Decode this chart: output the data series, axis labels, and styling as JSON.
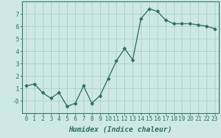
{
  "x": [
    0,
    1,
    2,
    3,
    4,
    5,
    6,
    7,
    8,
    9,
    10,
    11,
    12,
    13,
    14,
    15,
    16,
    17,
    18,
    19,
    20,
    21,
    22,
    23
  ],
  "y": [
    1.2,
    1.35,
    0.65,
    0.2,
    0.65,
    -0.45,
    -0.2,
    1.2,
    -0.2,
    0.4,
    1.8,
    3.2,
    4.2,
    3.3,
    6.6,
    7.4,
    7.2,
    6.5,
    6.2,
    6.2,
    6.2,
    6.1,
    6.0,
    5.8
  ],
  "line_color": "#2e6e65",
  "marker": "D",
  "marker_size": 2.5,
  "bg_color": "#cde8e5",
  "grid_color": "#a8ceca",
  "xlabel": "Humidex (Indice chaleur)",
  "xlabel_fontsize": 7.5,
  "xlim": [
    -0.5,
    23.5
  ],
  "ylim": [
    -1.0,
    8.0
  ],
  "yticks": [
    0,
    1,
    2,
    3,
    4,
    5,
    6,
    7
  ],
  "ytick_labels": [
    "-0",
    "1",
    "2",
    "3",
    "4",
    "5",
    "6",
    "7"
  ],
  "xticks": [
    0,
    1,
    2,
    3,
    4,
    5,
    6,
    7,
    8,
    9,
    10,
    11,
    12,
    13,
    14,
    15,
    16,
    17,
    18,
    19,
    20,
    21,
    22,
    23
  ],
  "tick_fontsize": 6,
  "spine_color": "#2e6e65",
  "line_width": 1.0
}
